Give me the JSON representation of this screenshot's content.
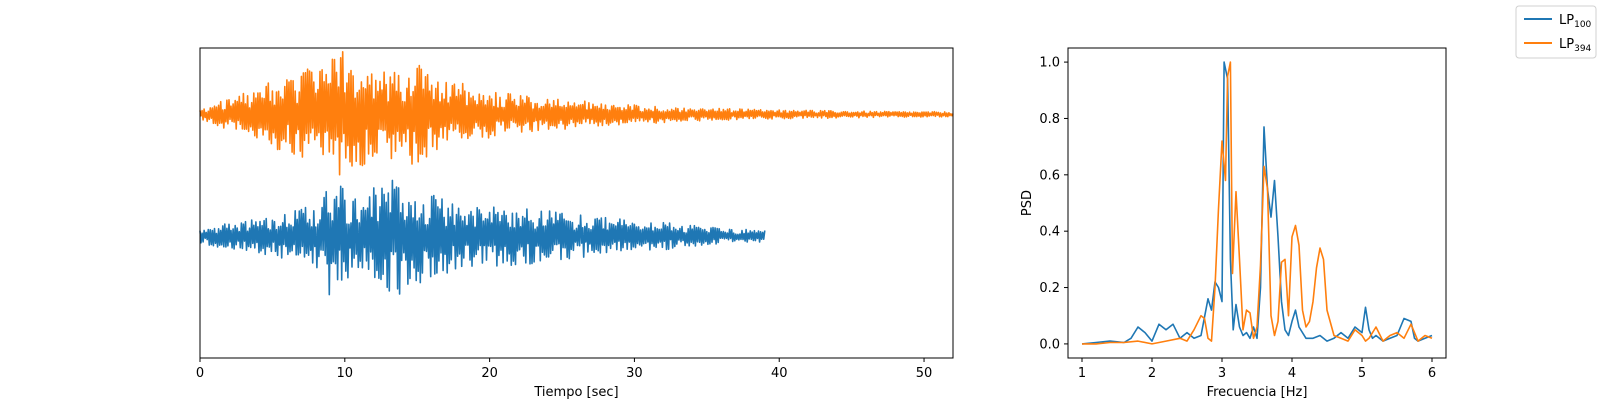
{
  "chart_data": [
    {
      "type": "line",
      "title": "",
      "xlabel": "Tiempo [sec]",
      "ylabel": "",
      "xlim": [
        0,
        52
      ],
      "xticks": [
        0,
        10,
        20,
        30,
        40,
        50
      ],
      "y_ticks_visible": false,
      "grid": false,
      "series": [
        {
          "name": "LP100",
          "color": "#1f77b4",
          "duration_sec": 39,
          "vertical_offset": -1.1,
          "envelope_t": [
            0,
            2,
            5,
            8,
            9,
            11,
            12,
            13.5,
            15.5,
            18,
            22,
            26,
            30,
            33,
            36,
            39
          ],
          "envelope_a": [
            0.1,
            0.22,
            0.3,
            0.5,
            0.95,
            0.6,
            0.85,
            0.95,
            0.7,
            0.5,
            0.45,
            0.35,
            0.25,
            0.2,
            0.12,
            0.1
          ]
        },
        {
          "name": "LP394",
          "color": "#ff7f0e",
          "duration_sec": 52,
          "vertical_offset": 0,
          "envelope_t": [
            0,
            3,
            6,
            8,
            10,
            12,
            15,
            16,
            19,
            22,
            26,
            30,
            35,
            40,
            46,
            52
          ],
          "envelope_a": [
            0.08,
            0.35,
            0.6,
            0.75,
            1.0,
            0.7,
            0.8,
            0.6,
            0.45,
            0.3,
            0.22,
            0.15,
            0.1,
            0.07,
            0.05,
            0.04
          ]
        }
      ]
    },
    {
      "type": "line",
      "title": "",
      "xlabel": "Frecuencia [Hz]",
      "ylabel": "PSD",
      "xlim": [
        0.8,
        6.2
      ],
      "ylim": [
        -0.05,
        1.05
      ],
      "xticks": [
        1,
        2,
        3,
        4,
        5,
        6
      ],
      "yticks": [
        0.0,
        0.2,
        0.4,
        0.6,
        0.8,
        1.0
      ],
      "grid": false,
      "series": [
        {
          "name": "LP100",
          "color": "#1f77b4",
          "x": [
            1.0,
            1.2,
            1.4,
            1.6,
            1.7,
            1.8,
            1.9,
            2.0,
            2.1,
            2.2,
            2.3,
            2.4,
            2.5,
            2.6,
            2.7,
            2.8,
            2.85,
            2.9,
            2.95,
            3.0,
            3.03,
            3.08,
            3.12,
            3.16,
            3.2,
            3.25,
            3.3,
            3.35,
            3.4,
            3.45,
            3.5,
            3.55,
            3.6,
            3.65,
            3.7,
            3.75,
            3.8,
            3.85,
            3.9,
            3.95,
            4.0,
            4.05,
            4.1,
            4.2,
            4.3,
            4.4,
            4.5,
            4.6,
            4.7,
            4.8,
            4.9,
            5.0,
            5.05,
            5.1,
            5.15,
            5.2,
            5.3,
            5.4,
            5.5,
            5.6,
            5.7,
            5.75,
            5.8,
            5.9,
            6.0
          ],
          "y": [
            0.0,
            0.005,
            0.01,
            0.005,
            0.02,
            0.06,
            0.04,
            0.01,
            0.07,
            0.05,
            0.07,
            0.02,
            0.04,
            0.02,
            0.03,
            0.16,
            0.12,
            0.22,
            0.2,
            0.15,
            1.0,
            0.94,
            0.3,
            0.05,
            0.14,
            0.06,
            0.03,
            0.04,
            0.02,
            0.06,
            0.02,
            0.2,
            0.77,
            0.55,
            0.45,
            0.58,
            0.38,
            0.15,
            0.05,
            0.03,
            0.08,
            0.12,
            0.06,
            0.02,
            0.02,
            0.03,
            0.01,
            0.02,
            0.04,
            0.02,
            0.06,
            0.04,
            0.13,
            0.05,
            0.02,
            0.03,
            0.01,
            0.02,
            0.03,
            0.09,
            0.08,
            0.02,
            0.01,
            0.02,
            0.03
          ]
        },
        {
          "name": "LP394",
          "color": "#ff7f0e",
          "x": [
            1.0,
            1.2,
            1.4,
            1.6,
            1.8,
            2.0,
            2.2,
            2.4,
            2.5,
            2.6,
            2.7,
            2.75,
            2.8,
            2.85,
            2.9,
            2.95,
            3.0,
            3.05,
            3.08,
            3.12,
            3.15,
            3.2,
            3.25,
            3.3,
            3.35,
            3.4,
            3.45,
            3.5,
            3.55,
            3.6,
            3.65,
            3.7,
            3.75,
            3.8,
            3.85,
            3.9,
            3.95,
            4.0,
            4.05,
            4.1,
            4.15,
            4.2,
            4.25,
            4.3,
            4.35,
            4.4,
            4.45,
            4.5,
            4.6,
            4.7,
            4.8,
            4.9,
            5.0,
            5.05,
            5.1,
            5.2,
            5.3,
            5.4,
            5.5,
            5.6,
            5.7,
            5.8,
            5.9,
            6.0
          ],
          "y": [
            0.0,
            0.0,
            0.005,
            0.005,
            0.01,
            0.0,
            0.01,
            0.02,
            0.01,
            0.05,
            0.1,
            0.09,
            0.02,
            0.01,
            0.2,
            0.48,
            0.72,
            0.58,
            0.95,
            1.0,
            0.25,
            0.54,
            0.3,
            0.05,
            0.12,
            0.11,
            0.02,
            0.06,
            0.28,
            0.63,
            0.55,
            0.1,
            0.03,
            0.08,
            0.29,
            0.3,
            0.1,
            0.38,
            0.42,
            0.35,
            0.12,
            0.06,
            0.08,
            0.15,
            0.27,
            0.34,
            0.3,
            0.12,
            0.03,
            0.02,
            0.01,
            0.05,
            0.03,
            0.01,
            0.02,
            0.06,
            0.01,
            0.03,
            0.04,
            0.02,
            0.07,
            0.01,
            0.03,
            0.02
          ]
        }
      ]
    }
  ],
  "legend": {
    "placement": "top-right",
    "items": [
      {
        "base": "LP",
        "sub": "100",
        "color": "#1f77b4"
      },
      {
        "base": "LP",
        "sub": "394",
        "color": "#ff7f0e"
      }
    ]
  }
}
